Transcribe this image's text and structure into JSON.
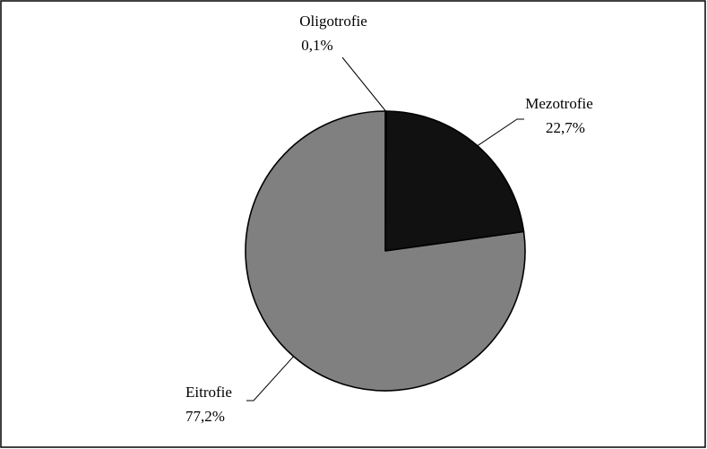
{
  "chart_data": {
    "type": "pie",
    "categories": [
      "Oligotrofie",
      "Mezotrofie",
      "Eitrofie"
    ],
    "values": [
      0.1,
      22.7,
      77.2
    ],
    "value_labels": [
      "0,1%",
      "22,7%",
      "77,2%"
    ],
    "unit": "%",
    "colors": [
      "#ffffff",
      "#111111",
      "#808080"
    ],
    "slice_stroke": "#000000",
    "border_color": "#000000",
    "start_angle_deg": 0,
    "direction": "clockwise",
    "legend": "none",
    "labels_outside_with_leader_lines": true
  }
}
